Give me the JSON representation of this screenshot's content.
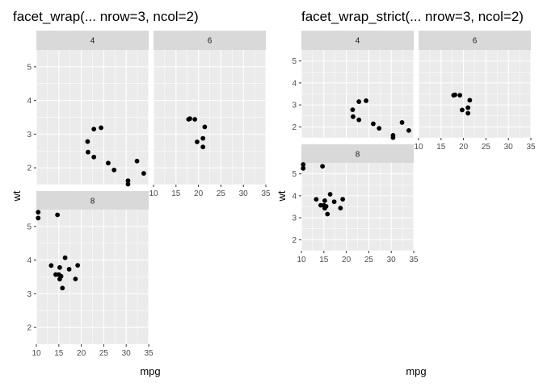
{
  "chart_data": [
    {
      "type": "scatter",
      "title": "facet_wrap(... nrow=3, ncol=2)",
      "xlabel": "mpg",
      "ylabel": "wt",
      "xlim": [
        10,
        35
      ],
      "ylim": [
        1.5,
        5.5
      ],
      "x_ticks": [
        "10",
        "15",
        "20",
        "25",
        "30",
        "35"
      ],
      "y_ticks": [
        "2",
        "3",
        "4",
        "5"
      ],
      "panels": [
        {
          "strip": "4",
          "points": [
            [
              22.8,
              2.32
            ],
            [
              24.4,
              3.19
            ],
            [
              22.8,
              3.15
            ],
            [
              32.4,
              2.2
            ],
            [
              30.4,
              1.615
            ],
            [
              33.9,
              1.835
            ],
            [
              21.5,
              2.465
            ],
            [
              27.3,
              1.935
            ],
            [
              26.0,
              2.14
            ],
            [
              30.4,
              1.513
            ],
            [
              21.4,
              2.78
            ]
          ]
        },
        {
          "strip": "6",
          "points": [
            [
              21.0,
              2.62
            ],
            [
              21.0,
              2.875
            ],
            [
              21.4,
              3.215
            ],
            [
              18.1,
              3.46
            ],
            [
              19.2,
              3.44
            ],
            [
              17.8,
              3.44
            ],
            [
              19.7,
              2.77
            ]
          ]
        },
        {
          "strip": "8",
          "points": [
            [
              18.7,
              3.44
            ],
            [
              14.3,
              3.57
            ],
            [
              16.4,
              4.07
            ],
            [
              17.3,
              3.73
            ],
            [
              15.2,
              3.78
            ],
            [
              10.4,
              5.25
            ],
            [
              10.4,
              5.424
            ],
            [
              14.7,
              5.345
            ],
            [
              15.5,
              3.52
            ],
            [
              15.2,
              3.435
            ],
            [
              13.3,
              3.84
            ],
            [
              19.2,
              3.845
            ],
            [
              15.8,
              3.17
            ],
            [
              15.0,
              3.57
            ]
          ]
        }
      ]
    },
    {
      "type": "scatter",
      "title": "facet_wrap_strict(... nrow=3, ncol=2)",
      "xlabel": "mpg",
      "ylabel": "wt",
      "xlim": [
        10,
        35
      ],
      "ylim": [
        1.5,
        5.5
      ],
      "x_ticks": [
        "10",
        "15",
        "20",
        "25",
        "30",
        "35"
      ],
      "y_ticks": [
        "2",
        "3",
        "4",
        "5"
      ],
      "panels": [
        {
          "strip": "4",
          "points": [
            [
              22.8,
              2.32
            ],
            [
              24.4,
              3.19
            ],
            [
              22.8,
              3.15
            ],
            [
              32.4,
              2.2
            ],
            [
              30.4,
              1.615
            ],
            [
              33.9,
              1.835
            ],
            [
              21.5,
              2.465
            ],
            [
              27.3,
              1.935
            ],
            [
              26.0,
              2.14
            ],
            [
              30.4,
              1.513
            ],
            [
              21.4,
              2.78
            ]
          ]
        },
        {
          "strip": "6",
          "points": [
            [
              21.0,
              2.62
            ],
            [
              21.0,
              2.875
            ],
            [
              21.4,
              3.215
            ],
            [
              18.1,
              3.46
            ],
            [
              19.2,
              3.44
            ],
            [
              17.8,
              3.44
            ],
            [
              19.7,
              2.77
            ]
          ]
        },
        {
          "strip": "8",
          "points": [
            [
              18.7,
              3.44
            ],
            [
              14.3,
              3.57
            ],
            [
              16.4,
              4.07
            ],
            [
              17.3,
              3.73
            ],
            [
              15.2,
              3.78
            ],
            [
              10.4,
              5.25
            ],
            [
              10.4,
              5.424
            ],
            [
              14.7,
              5.345
            ],
            [
              15.5,
              3.52
            ],
            [
              15.2,
              3.435
            ],
            [
              13.3,
              3.84
            ],
            [
              19.2,
              3.845
            ],
            [
              15.8,
              3.17
            ],
            [
              15.0,
              3.57
            ]
          ]
        }
      ]
    }
  ]
}
